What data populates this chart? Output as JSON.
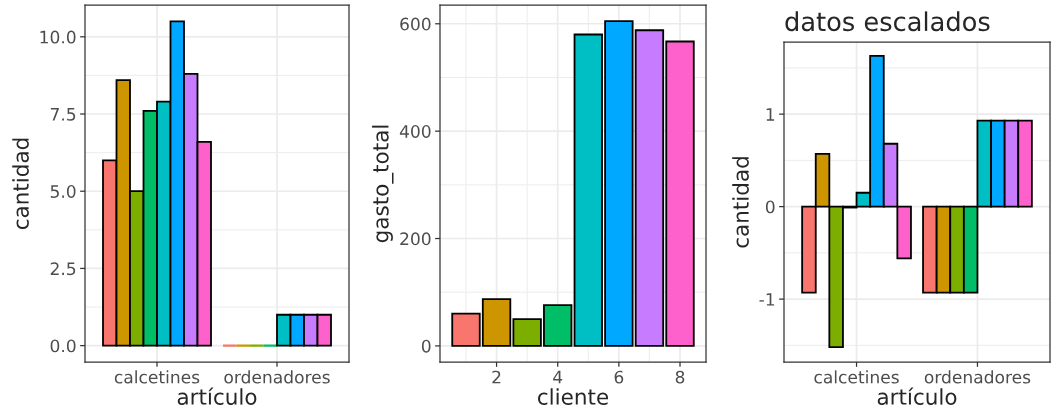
{
  "chart_data": [
    {
      "type": "bar",
      "xlabel": "artículo",
      "ylabel": "cantidad",
      "categories": [
        "calcetines",
        "ordenadores"
      ],
      "series": [
        {
          "color": "#f8766d",
          "values": [
            6.0,
            0
          ]
        },
        {
          "color": "#cd9600",
          "values": [
            8.6,
            0
          ]
        },
        {
          "color": "#7cae00",
          "values": [
            5.0,
            0
          ]
        },
        {
          "color": "#00be67",
          "values": [
            7.6,
            0
          ]
        },
        {
          "color": "#00bfc4",
          "values": [
            7.9,
            1
          ]
        },
        {
          "color": "#00a9ff",
          "values": [
            10.5,
            1
          ]
        },
        {
          "color": "#c77cff",
          "values": [
            8.8,
            1
          ]
        },
        {
          "color": "#ff61cc",
          "values": [
            6.6,
            1
          ]
        }
      ],
      "ylim": [
        -0.53,
        11.03
      ],
      "yticks": [
        {
          "value": 0,
          "label": "0.0"
        },
        {
          "value": 2.5,
          "label": "2.5"
        },
        {
          "value": 5,
          "label": "5.0"
        },
        {
          "value": 7.5,
          "label": "7.5"
        },
        {
          "value": 10,
          "label": "10.0"
        }
      ],
      "grid": true
    },
    {
      "type": "bar",
      "xlabel": "cliente",
      "ylabel": "gasto_total",
      "x": [
        1,
        2,
        3,
        4,
        5,
        6,
        7,
        8
      ],
      "values": [
        60,
        87,
        50,
        76,
        580,
        605,
        588,
        567
      ],
      "colors": [
        "#f8766d",
        "#cd9600",
        "#7cae00",
        "#00be67",
        "#00bfc4",
        "#00a9ff",
        "#c77cff",
        "#ff61cc"
      ],
      "xlim": [
        0.15,
        8.85
      ],
      "xticks": [
        2,
        4,
        6,
        8
      ],
      "ylim": [
        -30,
        635
      ],
      "yticks": [
        0,
        200,
        400,
        600
      ],
      "grid": true
    },
    {
      "type": "bar",
      "title": "datos escalados",
      "xlabel": "artículo",
      "ylabel": "cantidad",
      "categories": [
        "calcetines",
        "ordenadores"
      ],
      "series": [
        {
          "color": "#f8766d",
          "values": [
            -0.93,
            -0.93
          ]
        },
        {
          "color": "#cd9600",
          "values": [
            0.57,
            -0.93
          ]
        },
        {
          "color": "#7cae00",
          "values": [
            -1.52,
            -0.93
          ]
        },
        {
          "color": "#00be67",
          "values": [
            -0.01,
            -0.93
          ]
        },
        {
          "color": "#00bfc4",
          "values": [
            0.15,
            0.93
          ]
        },
        {
          "color": "#00a9ff",
          "values": [
            1.63,
            0.93
          ]
        },
        {
          "color": "#c77cff",
          "values": [
            0.68,
            0.93
          ]
        },
        {
          "color": "#ff61cc",
          "values": [
            -0.56,
            0.93
          ]
        }
      ],
      "ylim": [
        -1.68,
        1.78
      ],
      "yticks": [
        -1,
        0,
        1
      ],
      "grid": true
    }
  ]
}
